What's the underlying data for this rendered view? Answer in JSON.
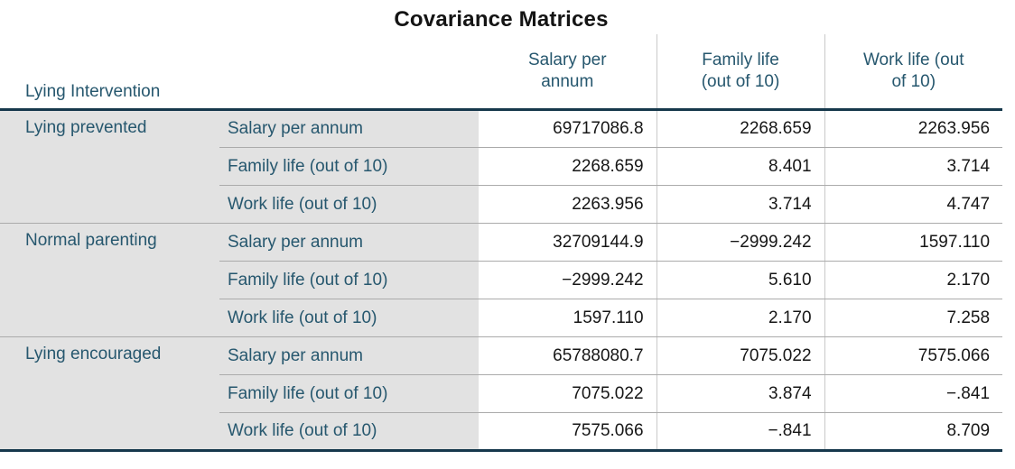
{
  "title": "Covariance Matrices",
  "colors": {
    "header_text": "#26576e",
    "label_background": "#e2e2e2",
    "thick_rule": "#16384c",
    "light_rule": "#ababab",
    "vertical_rule": "#c9c9c9",
    "value_text": "#161616"
  },
  "table": {
    "corner_label": "Lying Intervention",
    "column_headers": [
      "Salary per\nannum",
      "Family life\n(out of 10)",
      "Work life (out\nof 10)"
    ],
    "row_variables": [
      "Salary per annum",
      "Family life (out of 10)",
      "Work life (out of 10)"
    ],
    "groups": [
      {
        "label": "Lying prevented",
        "rows": [
          [
            "69717086.8",
            "2268.659",
            "2263.956"
          ],
          [
            "2268.659",
            "8.401",
            "3.714"
          ],
          [
            "2263.956",
            "3.714",
            "4.747"
          ]
        ]
      },
      {
        "label": "Normal parenting",
        "rows": [
          [
            "32709144.9",
            "−2999.242",
            "1597.110"
          ],
          [
            "−2999.242",
            "5.610",
            "2.170"
          ],
          [
            "1597.110",
            "2.170",
            "7.258"
          ]
        ]
      },
      {
        "label": "Lying encouraged",
        "rows": [
          [
            "65788080.7",
            "7075.022",
            "7575.066"
          ],
          [
            "7075.022",
            "3.874",
            "−.841"
          ],
          [
            "7575.066",
            "−.841",
            "8.709"
          ]
        ]
      }
    ]
  },
  "chart_data": {
    "type": "table",
    "title": "Covariance Matrices",
    "row_group_header": "Lying Intervention",
    "columns": [
      "Salary per annum",
      "Family life (out of 10)",
      "Work life (out of 10)"
    ],
    "row_variables": [
      "Salary per annum",
      "Family life (out of 10)",
      "Work life (out of 10)"
    ],
    "groups": [
      {
        "label": "Lying prevented",
        "matrix": [
          [
            69717086.8,
            2268.659,
            2263.956
          ],
          [
            2268.659,
            8.401,
            3.714
          ],
          [
            2263.956,
            3.714,
            4.747
          ]
        ]
      },
      {
        "label": "Normal parenting",
        "matrix": [
          [
            32709144.9,
            -2999.242,
            1597.11
          ],
          [
            -2999.242,
            5.61,
            2.17
          ],
          [
            1597.11,
            2.17,
            7.258
          ]
        ]
      },
      {
        "label": "Lying encouraged",
        "matrix": [
          [
            65788080.7,
            7075.022,
            7575.066
          ],
          [
            7075.022,
            3.874,
            -0.841
          ],
          [
            7575.066,
            -0.841,
            8.709
          ]
        ]
      }
    ]
  }
}
